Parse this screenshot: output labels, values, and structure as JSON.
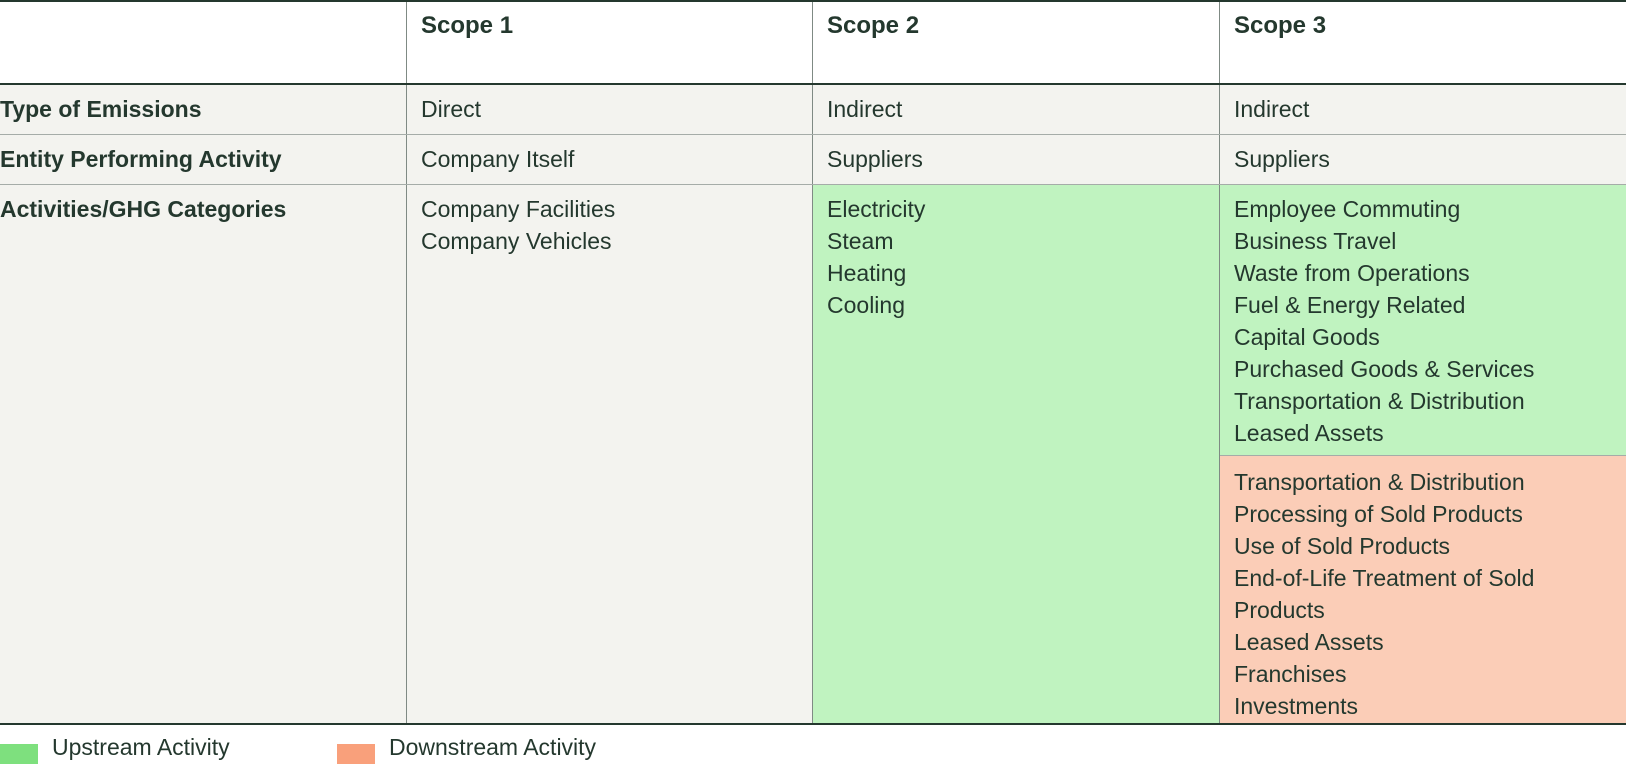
{
  "columns": [
    "",
    "Scope 1",
    "Scope 2",
    "Scope 3"
  ],
  "rows": {
    "type_of_emissions": {
      "label": "Type of Emissions",
      "values": [
        "Direct",
        "Indirect",
        "Indirect"
      ]
    },
    "entity": {
      "label": "Entity Performing Activity",
      "values": [
        "Company Itself",
        "Suppliers",
        "Suppliers"
      ]
    },
    "activities": {
      "label": "Activities/GHG Categories",
      "scope1": [
        "Company Facilities",
        "Company Vehicles"
      ],
      "scope2": [
        "Electricity",
        "Steam",
        "Heating",
        "Cooling"
      ],
      "scope3_upstream": [
        "Employee Commuting",
        "Business Travel",
        "Waste from Operations",
        "Fuel & Energy Related",
        "Capital Goods",
        "Purchased Goods & Services",
        "Transportation & Distribution",
        "Leased Assets"
      ],
      "scope3_downstream": [
        "Transportation & Distribution",
        "Processing of Sold Products",
        "Use of Sold Products",
        "End-of-Life Treatment of Sold Products",
        "Leased Assets",
        "Franchises",
        "Investments"
      ]
    }
  },
  "legend": {
    "upstream": {
      "label": "Upstream Activity",
      "color": "#7ee07e"
    },
    "downstream": {
      "label": "Downstream Activity",
      "color": "#f9a07b"
    }
  },
  "colors": {
    "upstream_fill": "#c0f3c0",
    "downstream_fill": "#fbcdb7",
    "neutral_fill": "#f3f3ef",
    "text": "#24382e"
  }
}
